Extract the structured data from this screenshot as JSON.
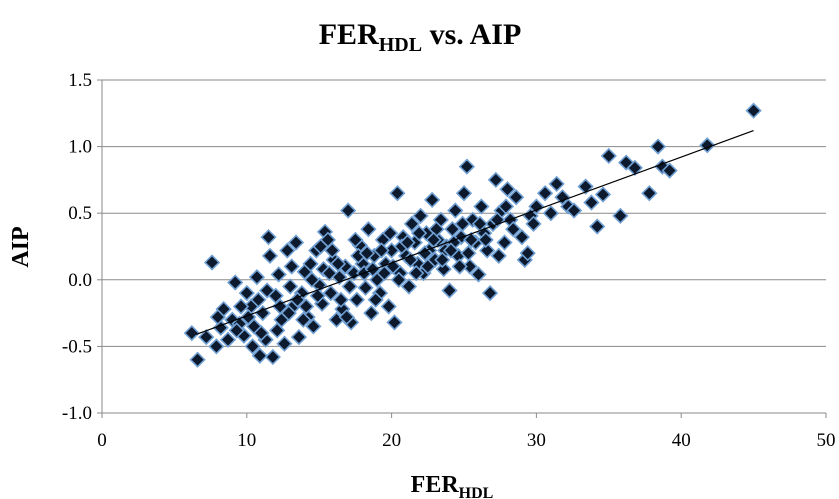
{
  "chart_data": {
    "type": "scatter",
    "title": {
      "main": "FER",
      "sub": "HDL",
      "rest": " vs. AIP"
    },
    "xlabel": {
      "main": "FER",
      "sub": "HDL"
    },
    "ylabel": "AIP",
    "xlim": [
      0,
      50
    ],
    "ylim": [
      -1.0,
      1.5
    ],
    "x_ticks": [
      0,
      10,
      20,
      30,
      40,
      50
    ],
    "y_ticks": [
      -1.0,
      -0.5,
      0.0,
      0.5,
      1.0,
      1.5
    ],
    "y_tick_labels": [
      "-1.0",
      "-0.5",
      "0.0",
      "0.5",
      "1.0",
      "1.5"
    ],
    "grid": true,
    "legend": "none",
    "marker_color": "#0d1a2e",
    "marker_edge_color": "#6f9fd3",
    "trendline": {
      "x": [
        6.5,
        45
      ],
      "y": [
        -0.41,
        1.12
      ]
    },
    "points": [
      [
        6.2,
        -0.4
      ],
      [
        6.6,
        -0.6
      ],
      [
        7.2,
        -0.43
      ],
      [
        7.6,
        0.13
      ],
      [
        7.9,
        -0.5
      ],
      [
        8.2,
        -0.36
      ],
      [
        8.4,
        -0.22
      ],
      [
        8.7,
        -0.45
      ],
      [
        9.0,
        -0.3
      ],
      [
        9.2,
        -0.02
      ],
      [
        9.5,
        -0.33
      ],
      [
        9.8,
        -0.42
      ],
      [
        10.0,
        -0.1
      ],
      [
        10.3,
        -0.2
      ],
      [
        10.5,
        -0.35
      ],
      [
        10.7,
        0.02
      ],
      [
        10.9,
        -0.57
      ],
      [
        11.1,
        -0.25
      ],
      [
        11.3,
        -0.45
      ],
      [
        11.5,
        0.32
      ],
      [
        11.6,
        0.18
      ],
      [
        11.8,
        -0.58
      ],
      [
        12.0,
        -0.12
      ],
      [
        12.2,
        0.04
      ],
      [
        12.4,
        -0.3
      ],
      [
        12.6,
        -0.48
      ],
      [
        12.8,
        0.22
      ],
      [
        13.0,
        -0.05
      ],
      [
        13.2,
        -0.2
      ],
      [
        13.4,
        0.28
      ],
      [
        13.6,
        -0.43
      ],
      [
        13.8,
        -0.1
      ],
      [
        14.0,
        0.06
      ],
      [
        14.2,
        -0.28
      ],
      [
        14.4,
        0.12
      ],
      [
        14.6,
        -0.35
      ],
      [
        14.8,
        0.22
      ],
      [
        15.0,
        -0.04
      ],
      [
        15.2,
        -0.18
      ],
      [
        15.4,
        0.36
      ],
      [
        15.6,
        0.3
      ],
      [
        15.8,
        -0.1
      ],
      [
        16.0,
        0.15
      ],
      [
        16.2,
        -0.3
      ],
      [
        16.4,
        0.02
      ],
      [
        16.6,
        -0.22
      ],
      [
        16.8,
        0.1
      ],
      [
        17.0,
        0.52
      ],
      [
        17.2,
        -0.32
      ],
      [
        17.4,
        0.05
      ],
      [
        17.6,
        -0.15
      ],
      [
        17.8,
        0.26
      ],
      [
        18.0,
        0.12
      ],
      [
        18.2,
        -0.06
      ],
      [
        18.4,
        0.38
      ],
      [
        18.6,
        -0.25
      ],
      [
        18.8,
        0.18
      ],
      [
        19.0,
        0.0
      ],
      [
        19.2,
        -0.1
      ],
      [
        19.4,
        0.3
      ],
      [
        19.6,
        0.12
      ],
      [
        19.8,
        -0.2
      ],
      [
        20.0,
        0.22
      ],
      [
        20.2,
        -0.32
      ],
      [
        20.4,
        0.65
      ],
      [
        20.6,
        0.05
      ],
      [
        20.8,
        0.32
      ],
      [
        21.0,
        0.18
      ],
      [
        21.2,
        -0.05
      ],
      [
        21.4,
        0.42
      ],
      [
        21.6,
        0.28
      ],
      [
        21.8,
        0.12
      ],
      [
        22.0,
        0.48
      ],
      [
        22.2,
        0.05
      ],
      [
        22.4,
        0.35
      ],
      [
        22.6,
        0.22
      ],
      [
        22.8,
        0.6
      ],
      [
        23.0,
        0.15
      ],
      [
        23.2,
        0.3
      ],
      [
        23.4,
        0.45
      ],
      [
        23.6,
        0.08
      ],
      [
        23.8,
        0.25
      ],
      [
        24.0,
        -0.08
      ],
      [
        24.2,
        0.38
      ],
      [
        24.4,
        0.52
      ],
      [
        24.6,
        0.18
      ],
      [
        24.8,
        0.32
      ],
      [
        25.0,
        0.65
      ],
      [
        25.2,
        0.85
      ],
      [
        25.4,
        0.1
      ],
      [
        25.6,
        0.45
      ],
      [
        25.8,
        0.28
      ],
      [
        26.0,
        0.04
      ],
      [
        26.2,
        0.55
      ],
      [
        26.4,
        0.35
      ],
      [
        26.6,
        0.22
      ],
      [
        26.8,
        -0.1
      ],
      [
        27.0,
        0.42
      ],
      [
        27.2,
        0.75
      ],
      [
        27.4,
        0.18
      ],
      [
        27.6,
        0.52
      ],
      [
        27.8,
        0.28
      ],
      [
        28.0,
        0.68
      ],
      [
        28.2,
        0.45
      ],
      [
        28.6,
        0.62
      ],
      [
        29.0,
        0.32
      ],
      [
        29.2,
        0.15
      ],
      [
        29.4,
        0.2
      ],
      [
        29.6,
        0.48
      ],
      [
        30.0,
        0.55
      ],
      [
        30.6,
        0.65
      ],
      [
        31.0,
        0.5
      ],
      [
        31.4,
        0.72
      ],
      [
        31.8,
        0.62
      ],
      [
        32.2,
        0.55
      ],
      [
        33.4,
        0.7
      ],
      [
        33.8,
        0.58
      ],
      [
        34.2,
        0.4
      ],
      [
        34.6,
        0.64
      ],
      [
        35.0,
        0.93
      ],
      [
        35.8,
        0.48
      ],
      [
        36.2,
        0.88
      ],
      [
        36.8,
        0.84
      ],
      [
        37.8,
        0.65
      ],
      [
        38.4,
        1.0
      ],
      [
        38.7,
        0.85
      ],
      [
        39.2,
        0.82
      ],
      [
        41.8,
        1.01
      ],
      [
        45.0,
        1.27
      ],
      [
        9.6,
        -0.2
      ],
      [
        10.4,
        -0.5
      ],
      [
        11.0,
        -0.4
      ],
      [
        12.1,
        -0.38
      ],
      [
        12.9,
        -0.25
      ],
      [
        13.5,
        -0.15
      ],
      [
        14.1,
        -0.2
      ],
      [
        14.9,
        -0.12
      ],
      [
        15.3,
        0.08
      ],
      [
        15.9,
        0.22
      ],
      [
        16.5,
        -0.15
      ],
      [
        17.1,
        -0.05
      ],
      [
        17.7,
        0.18
      ],
      [
        18.3,
        0.2
      ],
      [
        18.9,
        -0.15
      ],
      [
        19.5,
        0.05
      ],
      [
        20.1,
        0.1
      ],
      [
        20.7,
        0.25
      ],
      [
        21.3,
        0.15
      ],
      [
        21.9,
        0.35
      ],
      [
        22.5,
        0.1
      ],
      [
        23.1,
        0.38
      ],
      [
        23.7,
        0.22
      ],
      [
        24.3,
        0.28
      ],
      [
        24.9,
        0.42
      ],
      [
        25.5,
        0.3
      ],
      [
        26.1,
        0.42
      ],
      [
        27.9,
        0.55
      ],
      [
        29.8,
        0.42
      ],
      [
        32.6,
        0.52
      ],
      [
        8.0,
        -0.28
      ],
      [
        9.3,
        -0.38
      ],
      [
        10.1,
        -0.28
      ],
      [
        10.8,
        -0.15
      ],
      [
        11.4,
        -0.08
      ],
      [
        12.3,
        -0.2
      ],
      [
        13.1,
        0.1
      ],
      [
        13.9,
        -0.3
      ],
      [
        14.5,
        0.0
      ],
      [
        15.1,
        0.25
      ],
      [
        15.7,
        0.05
      ],
      [
        16.3,
        0.12
      ],
      [
        16.9,
        -0.28
      ],
      [
        17.5,
        0.3
      ],
      [
        18.1,
        0.05
      ],
      [
        18.7,
        0.08
      ],
      [
        19.3,
        0.22
      ],
      [
        19.9,
        0.35
      ],
      [
        20.5,
        0.0
      ],
      [
        21.1,
        0.28
      ],
      [
        21.7,
        0.05
      ],
      [
        22.3,
        0.2
      ],
      [
        22.9,
        0.3
      ],
      [
        23.5,
        0.15
      ],
      [
        24.1,
        0.22
      ],
      [
        24.7,
        0.1
      ],
      [
        25.3,
        0.2
      ],
      [
        26.5,
        0.3
      ],
      [
        27.3,
        0.45
      ],
      [
        28.4,
        0.38
      ]
    ]
  }
}
